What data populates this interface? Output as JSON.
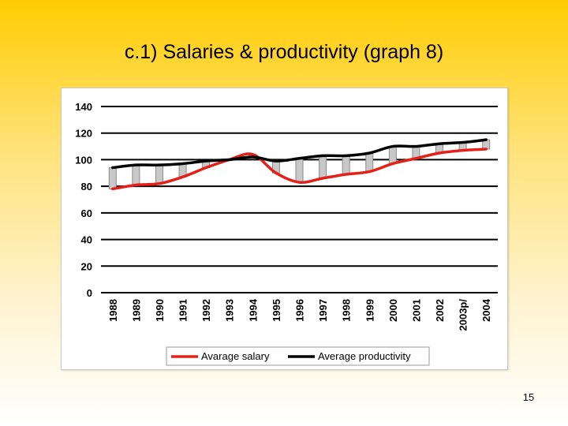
{
  "slide": {
    "title": "c.1) Salaries & productivity (graph 8)",
    "page_number": "15"
  },
  "chart_data": {
    "type": "line",
    "title": "",
    "xlabel": "",
    "ylabel": "",
    "ylim": [
      0,
      140
    ],
    "yticks": [
      0,
      20,
      40,
      60,
      80,
      100,
      120,
      140
    ],
    "grid": true,
    "legend_position": "bottom",
    "categories": [
      "1988",
      "1989",
      "1990",
      "1991",
      "1992",
      "1993",
      "1994",
      "1995",
      "1996",
      "1997",
      "1998",
      "1999",
      "2000",
      "2001",
      "2002",
      "2003p/",
      "2004"
    ],
    "series": [
      {
        "name": "Avarage salary",
        "color": "#e32119",
        "values": [
          78,
          81,
          82,
          87,
          94,
          100,
          104,
          90,
          83,
          86,
          89,
          91,
          97,
          101,
          105,
          107,
          108
        ]
      },
      {
        "name": "Average productivity",
        "color": "#000000",
        "values": [
          94,
          96,
          96,
          97,
          99,
          100,
          102,
          99,
          101,
          103,
          103,
          105,
          110,
          110,
          112,
          113,
          115
        ]
      }
    ],
    "gap_bars": {
      "fill": "#c8c8c8",
      "stroke": "#8a8a8a"
    }
  }
}
